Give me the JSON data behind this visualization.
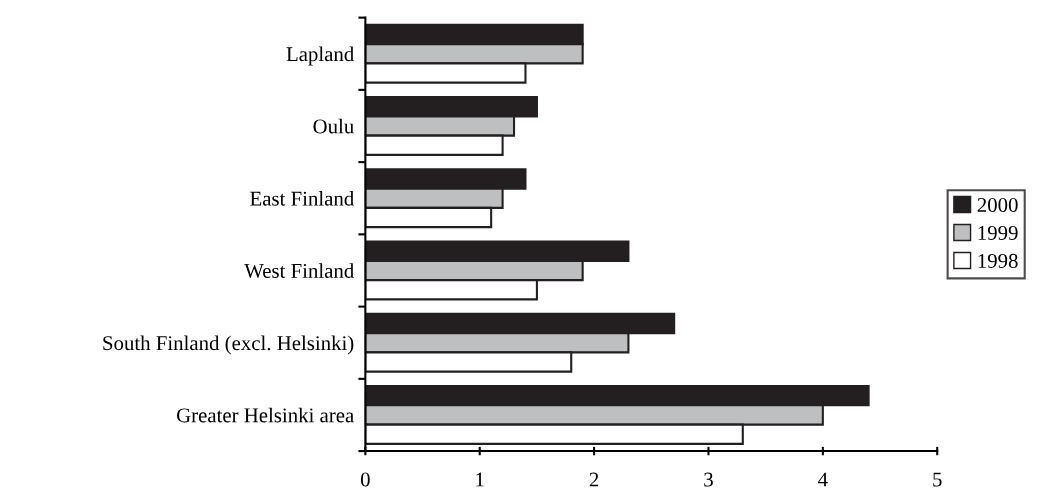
{
  "chart_data": {
    "type": "bar",
    "orientation": "horizontal",
    "categories": [
      "Lapland",
      "Oulu",
      "East Finland",
      "West Finland",
      "South Finland (excl. Helsinki)",
      "Greater Helsinki area"
    ],
    "series": [
      {
        "name": "2000",
        "color": "#231f20",
        "values": [
          1.9,
          1.5,
          1.4,
          2.3,
          2.7,
          4.4
        ]
      },
      {
        "name": "1999",
        "color": "#bebfc1",
        "values": [
          1.9,
          1.3,
          1.2,
          1.9,
          2.3,
          4.0
        ]
      },
      {
        "name": "1998",
        "color": "#ffffff",
        "values": [
          1.4,
          1.2,
          1.1,
          1.5,
          1.8,
          3.3
        ]
      }
    ],
    "xlim": [
      0,
      5
    ],
    "xticks": [
      0,
      1,
      2,
      3,
      4,
      5
    ],
    "grid": false,
    "legend": "right"
  }
}
